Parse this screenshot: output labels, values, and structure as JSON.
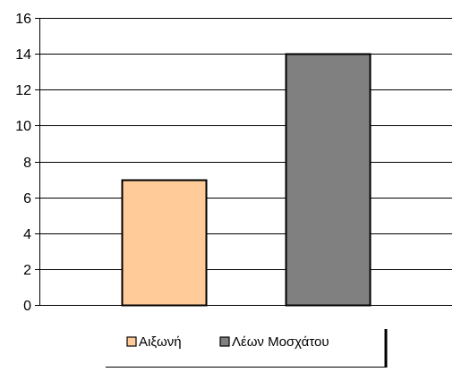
{
  "chart_data": {
    "type": "bar",
    "title": "",
    "xlabel": "",
    "ylabel": "",
    "ylim": [
      0,
      16
    ],
    "yticks": [
      0,
      2,
      4,
      6,
      8,
      10,
      12,
      14,
      16
    ],
    "grid": true,
    "legend_position": "bottom",
    "series": [
      {
        "name": "Αιξωνή",
        "value": 7,
        "color": "#FFCC99"
      },
      {
        "name": "Λέων Μοσχάτου",
        "value": 14,
        "color": "#808080"
      }
    ]
  }
}
